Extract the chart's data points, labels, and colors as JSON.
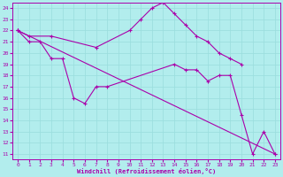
{
  "xlabel": "Windchill (Refroidissement éolien,°C)",
  "background_color": "#b2eded",
  "line_color": "#aa00aa",
  "grid_color": "#99dddd",
  "xlim": [
    -0.5,
    23.5
  ],
  "ylim": [
    10.5,
    24.5
  ],
  "xticks": [
    0,
    1,
    2,
    3,
    4,
    5,
    6,
    7,
    8,
    9,
    10,
    11,
    12,
    13,
    14,
    15,
    16,
    17,
    18,
    19,
    20,
    21,
    22,
    23
  ],
  "yticks": [
    11,
    12,
    13,
    14,
    15,
    16,
    17,
    18,
    19,
    20,
    21,
    22,
    23,
    24
  ],
  "series": [
    {
      "x": [
        0,
        1,
        3,
        7,
        10,
        11,
        12,
        13,
        14,
        15,
        16,
        17,
        18,
        19,
        20
      ],
      "y": [
        22,
        21.5,
        21.5,
        20.5,
        22,
        23,
        24,
        24.5,
        23.5,
        22.5,
        21.5,
        21,
        20,
        19.5,
        19
      ]
    },
    {
      "x": [
        0,
        1,
        2,
        3,
        4,
        5,
        6,
        7,
        8,
        14,
        15,
        16,
        17,
        18,
        19,
        20,
        21,
        22,
        23
      ],
      "y": [
        22,
        21,
        21,
        19.5,
        19.5,
        16,
        15.5,
        17,
        17,
        19,
        18.5,
        18.5,
        17.5,
        18,
        18,
        14.5,
        11,
        13,
        11
      ]
    },
    {
      "x": [
        0,
        23
      ],
      "y": [
        22,
        11
      ]
    }
  ]
}
